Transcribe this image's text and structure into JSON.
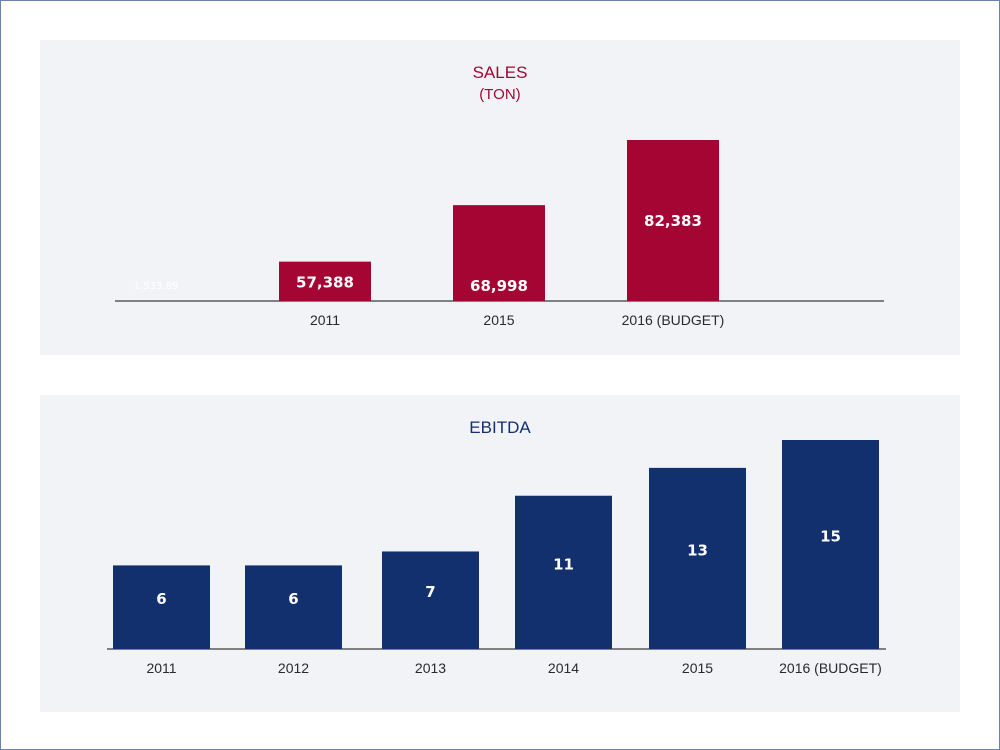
{
  "colors": {
    "sales": "#a50533",
    "ebitda": "#12306e",
    "panel_bg": "#f2f3f7",
    "axis": "#5a5a5a",
    "frame": "#6a84ad"
  },
  "chart_data": [
    {
      "type": "bar",
      "title": "SALES",
      "subtitle": "(TON)",
      "xlabel": "",
      "ylabel": "",
      "categories": [
        "",
        "2011",
        "2015",
        "2016 (BUDGET)"
      ],
      "values": [
        1533.89,
        57388,
        68998,
        82383
      ],
      "data_labels": [
        "1,533.89",
        "57,388",
        "68,998",
        "82,383"
      ],
      "ylim": [
        49300,
        82383
      ],
      "grid": false,
      "legend": "none"
    },
    {
      "type": "bar",
      "title": "EBITDA",
      "xlabel": "",
      "ylabel": "",
      "categories": [
        "2011",
        "2012",
        "2013",
        "2014",
        "2015",
        "2016 (BUDGET)"
      ],
      "values": [
        6,
        6,
        7,
        11,
        13,
        15
      ],
      "data_labels": [
        "6",
        "6",
        "7",
        "11",
        "13",
        "15"
      ],
      "ylim": [
        0,
        15
      ],
      "grid": false,
      "legend": "none"
    }
  ]
}
